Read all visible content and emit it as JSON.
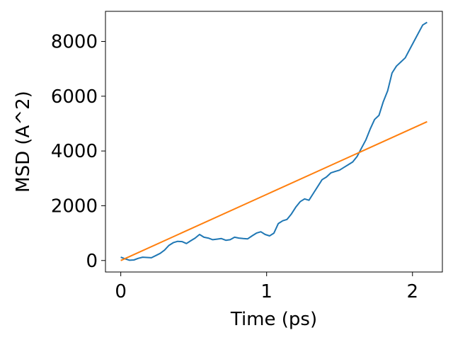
{
  "chart_data": {
    "type": "line",
    "title": "",
    "xlabel": "Time (ps)",
    "ylabel": "MSD (A^2)",
    "xlim": [
      -0.105,
      2.205
    ],
    "ylim": [
      -420,
      9100
    ],
    "xticks": [
      0,
      1,
      2
    ],
    "xtick_labels": [
      "0",
      "1",
      "2"
    ],
    "yticks": [
      0,
      2000,
      4000,
      6000,
      8000
    ],
    "ytick_labels": [
      "0",
      "2000",
      "4000",
      "6000",
      "8000"
    ],
    "grid": false,
    "legend": "none",
    "series": [
      {
        "color": "#1f77b4",
        "x": [
          0.0,
          0.03,
          0.06,
          0.09,
          0.12,
          0.15,
          0.18,
          0.21,
          0.24,
          0.27,
          0.3,
          0.33,
          0.36,
          0.39,
          0.42,
          0.45,
          0.48,
          0.51,
          0.54,
          0.57,
          0.6,
          0.63,
          0.66,
          0.69,
          0.72,
          0.75,
          0.78,
          0.81,
          0.84,
          0.87,
          0.9,
          0.93,
          0.96,
          0.99,
          1.02,
          1.05,
          1.08,
          1.11,
          1.14,
          1.17,
          1.2,
          1.23,
          1.26,
          1.29,
          1.32,
          1.35,
          1.38,
          1.41,
          1.44,
          1.47,
          1.5,
          1.53,
          1.56,
          1.59,
          1.62,
          1.65,
          1.68,
          1.71,
          1.74,
          1.77,
          1.8,
          1.83,
          1.86,
          1.89,
          1.92,
          1.95,
          1.98,
          2.01,
          2.04,
          2.07,
          2.1
        ],
        "y": [
          120,
          60,
          10,
          20,
          80,
          120,
          110,
          100,
          180,
          260,
          380,
          550,
          650,
          700,
          690,
          620,
          720,
          820,
          950,
          850,
          820,
          760,
          780,
          800,
          740,
          760,
          850,
          820,
          800,
          790,
          900,
          1000,
          1050,
          950,
          900,
          1000,
          1350,
          1450,
          1500,
          1700,
          1950,
          2150,
          2250,
          2200,
          2450,
          2700,
          2950,
          3050,
          3200,
          3250,
          3300,
          3400,
          3500,
          3600,
          3800,
          4100,
          4400,
          4800,
          5150,
          5300,
          5800,
          6200,
          6850,
          7100,
          7250,
          7400,
          7700,
          8000,
          8300,
          8600,
          8700
        ]
      },
      {
        "color": "#ff7f0e",
        "x": [
          0,
          2.1
        ],
        "y": [
          0,
          5070
        ]
      }
    ]
  }
}
